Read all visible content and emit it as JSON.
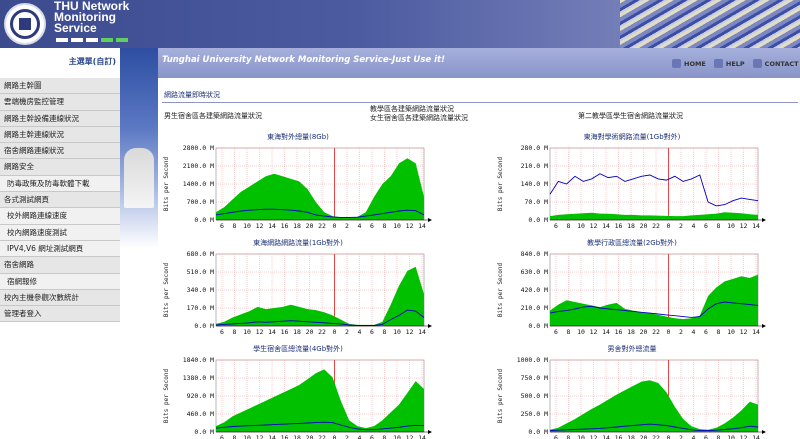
{
  "header": {
    "brand_lines": [
      "THU Network",
      "Monitoring",
      "Service"
    ],
    "tagline": "Tunghai University Network Monitoring Service-Just Use it!"
  },
  "topnav": [
    "HOME",
    "HELP",
    "CONTACT"
  ],
  "sidebar": {
    "title": "主選單(自訂)",
    "items": [
      {
        "label": "網路主幹圖",
        "sub": false
      },
      {
        "label": "雲端機房監控管理",
        "sub": false
      },
      {
        "label": "網路主幹設備連線狀況",
        "sub": false
      },
      {
        "label": "網路主幹連線狀況",
        "sub": false
      },
      {
        "label": "宿舍網路連線狀況",
        "sub": false
      },
      {
        "label": "網路安全",
        "sub": false
      },
      {
        "label": "防毒政策及防毒軟體下載",
        "sub": true
      },
      {
        "label": "各式測試網頁",
        "sub": false
      },
      {
        "label": "校外網路連線速度",
        "sub": true
      },
      {
        "label": "校內網路速度測試",
        "sub": true
      },
      {
        "label": "IPV4,V6 網址測試網頁",
        "sub": true
      },
      {
        "label": "宿舍網路",
        "sub": false
      },
      {
        "label": "宿網報修",
        "sub": true
      },
      {
        "label": "校內主機參觀次數統計",
        "sub": false
      },
      {
        "label": "管理者登入",
        "sub": false
      }
    ]
  },
  "content": {
    "section_title": "網路流量即時狀況",
    "groups": [
      "男生宿舍區各建築網路流量狀況",
      "教學區各建築網路流量狀況",
      "女生宿舍區各建築網路流量狀況",
      "第二教學區學生宿舍網路流量狀況"
    ]
  },
  "chart_data": [
    {
      "type": "area",
      "title": "東海對外總量(8Gb)",
      "ylabel": "Bits per Second",
      "x_ticks": [
        "6",
        "8",
        "10",
        "12",
        "14",
        "16",
        "18",
        "20",
        "22",
        "0",
        "2",
        "4",
        "6",
        "8",
        "10",
        "12",
        "14"
      ],
      "y_ticks": [
        "0.0 M",
        "700.0 M",
        "1400.0 M",
        "2100.0 M",
        "2800.0 M"
      ],
      "ylim": [
        0,
        2800
      ],
      "series": [
        {
          "values": [
            300,
            500,
            800,
            1100,
            1300,
            1500,
            1700,
            1800,
            1700,
            1600,
            1500,
            1200,
            700,
            300,
            150,
            100,
            100,
            120,
            300,
            900,
            1400,
            1700,
            2200,
            2400,
            2200,
            900
          ]
        },
        {
          "values": [
            200,
            250,
            300,
            350,
            380,
            400,
            420,
            420,
            400,
            380,
            350,
            300,
            200,
            150,
            120,
            100,
            100,
            110,
            150,
            200,
            250,
            300,
            350,
            380,
            360,
            200
          ]
        }
      ]
    },
    {
      "type": "area",
      "title": "東海對學術網路流量(1Gb對外)",
      "ylabel": "Bits per Second",
      "x_ticks": [
        "6",
        "8",
        "10",
        "12",
        "14",
        "16",
        "18",
        "20",
        "22",
        "0",
        "2",
        "4",
        "6",
        "8",
        "10",
        "12",
        "14"
      ],
      "y_ticks": [
        "0.0 M",
        "70.0 M",
        "140.0 M",
        "210.0 M",
        "280.0 M"
      ],
      "ylim": [
        0,
        280
      ],
      "series": [
        {
          "values": [
            15,
            20,
            22,
            24,
            26,
            28,
            25,
            24,
            22,
            20,
            20,
            18,
            18,
            17,
            16,
            15,
            15,
            18,
            20,
            22,
            25,
            30,
            28,
            26,
            22,
            20
          ]
        },
        {
          "values": [
            100,
            150,
            140,
            170,
            150,
            160,
            180,
            165,
            170,
            150,
            160,
            170,
            175,
            160,
            155,
            170,
            150,
            160,
            175,
            70,
            55,
            60,
            75,
            85,
            80,
            75
          ]
        }
      ]
    },
    {
      "type": "area",
      "title": "東海網路網路流量(1Gb對外)",
      "ylabel": "Bits per Second",
      "x_ticks": [
        "6",
        "8",
        "10",
        "12",
        "14",
        "16",
        "18",
        "20",
        "22",
        "0",
        "2",
        "4",
        "6",
        "8",
        "10",
        "12",
        "14"
      ],
      "y_ticks": [
        "0.0 M",
        "170.0 M",
        "340.0 M",
        "510.0 M",
        "680.0 M"
      ],
      "ylim": [
        0,
        680
      ],
      "series": [
        {
          "values": [
            20,
            40,
            80,
            110,
            140,
            180,
            160,
            170,
            180,
            200,
            180,
            160,
            150,
            130,
            100,
            60,
            20,
            10,
            10,
            10,
            40,
            200,
            380,
            520,
            560,
            300
          ]
        },
        {
          "values": [
            10,
            15,
            20,
            25,
            30,
            40,
            35,
            40,
            45,
            50,
            45,
            40,
            35,
            30,
            25,
            20,
            10,
            5,
            5,
            5,
            15,
            60,
            100,
            150,
            140,
            80
          ]
        }
      ]
    },
    {
      "type": "area",
      "title": "教學行政區總流量(2Gb對外)",
      "ylabel": "Bits per Second",
      "x_ticks": [
        "6",
        "8",
        "10",
        "12",
        "14",
        "16",
        "18",
        "20",
        "22",
        "0",
        "2",
        "4",
        "6",
        "8",
        "10",
        "12",
        "14"
      ],
      "y_ticks": [
        "0.0 M",
        "210.0 M",
        "420.0 M",
        "630.0 M",
        "840.0 M"
      ],
      "ylim": [
        0,
        840
      ],
      "series": [
        {
          "values": [
            180,
            250,
            300,
            280,
            260,
            240,
            220,
            250,
            270,
            200,
            180,
            160,
            150,
            130,
            110,
            90,
            80,
            90,
            120,
            350,
            450,
            520,
            550,
            580,
            560,
            600
          ]
        },
        {
          "values": [
            150,
            170,
            180,
            200,
            220,
            230,
            210,
            200,
            190,
            180,
            170,
            160,
            150,
            140,
            130,
            120,
            110,
            100,
            110,
            200,
            260,
            280,
            270,
            260,
            250,
            240
          ]
        }
      ]
    },
    {
      "type": "area",
      "title": "學生宿舍區總流量(4Gb對外)",
      "ylabel": "Bits per Second",
      "x_ticks": [
        "6",
        "8",
        "10",
        "12",
        "14",
        "16",
        "18",
        "20",
        "22",
        "0",
        "2",
        "4",
        "6",
        "8",
        "10",
        "12",
        "14"
      ],
      "y_ticks": [
        "0.0 M",
        "460.0 M",
        "920.0 M",
        "1380.0 M",
        "1840.0 M"
      ],
      "ylim": [
        0,
        1840
      ],
      "series": [
        {
          "values": [
            150,
            250,
            400,
            500,
            600,
            700,
            800,
            900,
            1000,
            1100,
            1200,
            1350,
            1500,
            1600,
            1400,
            800,
            300,
            150,
            100,
            150,
            300,
            500,
            700,
            1000,
            1300,
            1100
          ]
        },
        {
          "values": [
            100,
            120,
            140,
            150,
            160,
            170,
            180,
            190,
            200,
            210,
            220,
            230,
            240,
            250,
            240,
            180,
            120,
            80,
            60,
            60,
            80,
            100,
            120,
            150,
            170,
            160
          ]
        }
      ]
    },
    {
      "type": "area",
      "title": "男舍對外總流量",
      "ylabel": "Bits per Second",
      "x_ticks": [
        "6",
        "8",
        "10",
        "12",
        "14",
        "16",
        "18",
        "20",
        "22",
        "0",
        "2",
        "4",
        "6",
        "8",
        "10",
        "12",
        "14"
      ],
      "y_ticks": [
        "0.0 M",
        "250.0 M",
        "500.0 M",
        "750.0 M",
        "1000.0 M"
      ],
      "ylim": [
        0,
        1000
      ],
      "series": [
        {
          "values": [
            30,
            60,
            120,
            180,
            250,
            320,
            380,
            450,
            520,
            580,
            640,
            700,
            720,
            680,
            550,
            350,
            180,
            80,
            40,
            30,
            60,
            120,
            200,
            300,
            420,
            380
          ]
        },
        {
          "values": [
            20,
            25,
            30,
            35,
            40,
            45,
            50,
            60,
            70,
            80,
            90,
            100,
            110,
            100,
            90,
            70,
            50,
            30,
            20,
            20,
            25,
            35,
            45,
            60,
            80,
            70
          ]
        }
      ]
    }
  ]
}
